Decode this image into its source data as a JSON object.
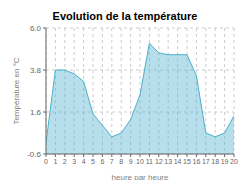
{
  "chart_data": {
    "type": "area",
    "title": "Evolution de la température",
    "xlabel": "heure par heure",
    "ylabel": "Température en °C",
    "x": [
      0,
      1,
      2,
      3,
      4,
      5,
      6,
      7,
      8,
      9,
      10,
      11,
      12,
      13,
      14,
      15,
      16,
      17,
      18,
      19,
      20
    ],
    "values": [
      0.0,
      3.8,
      3.8,
      3.6,
      3.2,
      1.5,
      0.9,
      0.3,
      0.5,
      1.2,
      2.5,
      5.2,
      4.7,
      4.6,
      4.6,
      4.6,
      3.5,
      0.5,
      0.3,
      0.5,
      1.4
    ],
    "color": "#4ab0cc",
    "xlim": [
      0,
      20
    ],
    "xticks": [
      0,
      1,
      2,
      3,
      4,
      5,
      6,
      7,
      8,
      9,
      10,
      11,
      12,
      13,
      14,
      15,
      16,
      17,
      18,
      19,
      20
    ],
    "ylim": [
      -0.6,
      6.0
    ],
    "yticks": [
      -0.6,
      1.6,
      3.8,
      {
        "value": 6.0,
        "label": "6.0"
      }
    ],
    "grid": true
  }
}
